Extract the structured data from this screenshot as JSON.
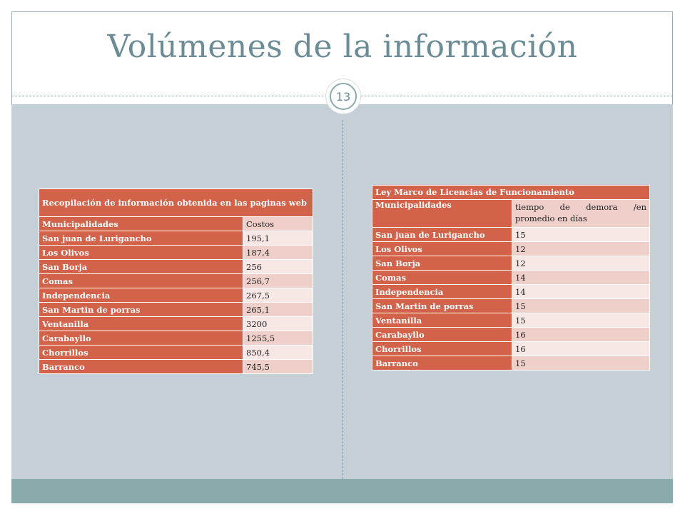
{
  "title": "Volúmenes de la información",
  "slide_number": "13",
  "table_left": {
    "caption": "Recopilación de información obtenida en las paginas web",
    "col_headers": [
      "Municipalidades",
      "Costos"
    ],
    "rows": [
      {
        "name": "San juan de Lurigancho",
        "value": "195,1"
      },
      {
        "name": "Los Olivos",
        "value": "187,4"
      },
      {
        "name": "San Borja",
        "value": "256"
      },
      {
        "name": "Comas",
        "value": "256,7"
      },
      {
        "name": "Independencia",
        "value": "267,5"
      },
      {
        "name": "San Martin de porras",
        "value": "265,1"
      },
      {
        "name": "Ventanilla",
        "value": "3200"
      },
      {
        "name": "Carabayllo",
        "value": "1255,5"
      },
      {
        "name": "Chorrillos",
        "value": "850,4"
      },
      {
        "name": "Barranco",
        "value": "745,5"
      }
    ]
  },
  "table_right": {
    "caption": "Ley Marco de Licencias de Funcionamiento",
    "col_headers": [
      "Municipalidades",
      "tiempo de demora /en promedio en días"
    ],
    "rows": [
      {
        "name": "San juan de Lurigancho",
        "value": "15"
      },
      {
        "name": "Los Olivos",
        "value": "12"
      },
      {
        "name": "San Borja",
        "value": "12"
      },
      {
        "name": "Comas",
        "value": "14"
      },
      {
        "name": "Independencia",
        "value": "14"
      },
      {
        "name": "San Martin de porras",
        "value": "15"
      },
      {
        "name": "Ventanilla",
        "value": "15"
      },
      {
        "name": "Carabayllo",
        "value": "16"
      },
      {
        "name": "Chorrillos",
        "value": "16"
      },
      {
        "name": "Barranco",
        "value": "15"
      }
    ]
  },
  "colors": {
    "accent_header": "#d2624a",
    "row_light": "#f8e8e5",
    "row_dark": "#efcfc9",
    "title_color": "#6b8c96",
    "panel_bg": "#c5d0d6",
    "footer_bar": "#8aabac"
  }
}
